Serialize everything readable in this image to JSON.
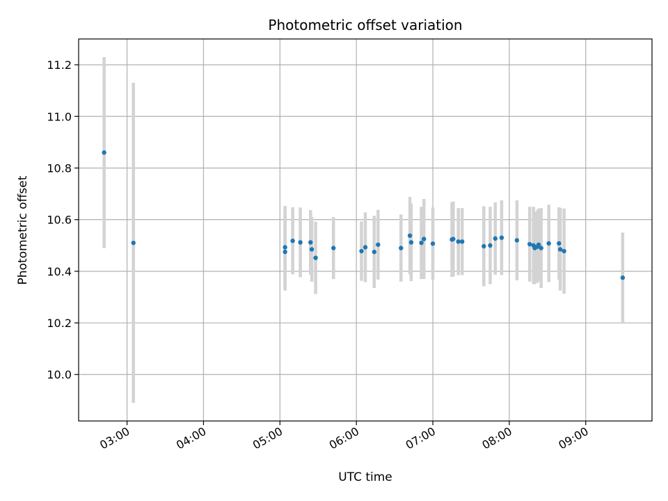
{
  "chart_data": {
    "type": "scatter",
    "title": "Photometric offset variation",
    "xlabel": "UTC time",
    "ylabel": "Photometric offset",
    "xlim": [
      "02:22",
      "09:52"
    ],
    "ylim": [
      9.82,
      11.3
    ],
    "x_ticks": [
      "03:00",
      "04:00",
      "05:00",
      "06:00",
      "07:00",
      "08:00",
      "09:00"
    ],
    "y_ticks": [
      "10.0",
      "10.2",
      "10.4",
      "10.6",
      "10.8",
      "11.0",
      "11.2"
    ],
    "grid": true,
    "marker_color": "#1f77b4",
    "errorbar_color": "#d3d3d3",
    "points": [
      {
        "x": "02:42",
        "y": 10.86,
        "err": 0.37
      },
      {
        "x": "03:05",
        "y": 10.51,
        "err": 0.62
      },
      {
        "x": "05:04",
        "y": 10.493,
        "err": 0.16
      },
      {
        "x": "05:04",
        "y": 10.475,
        "err": 0.15
      },
      {
        "x": "05:10",
        "y": 10.518,
        "err": 0.13
      },
      {
        "x": "05:16",
        "y": 10.512,
        "err": 0.135
      },
      {
        "x": "05:24",
        "y": 10.512,
        "err": 0.125
      },
      {
        "x": "05:25",
        "y": 10.485,
        "err": 0.125
      },
      {
        "x": "05:28",
        "y": 10.452,
        "err": 0.14
      },
      {
        "x": "05:42",
        "y": 10.49,
        "err": 0.12
      },
      {
        "x": "06:04",
        "y": 10.478,
        "err": 0.115
      },
      {
        "x": "06:07",
        "y": 10.493,
        "err": 0.135
      },
      {
        "x": "06:14",
        "y": 10.475,
        "err": 0.14
      },
      {
        "x": "06:17",
        "y": 10.503,
        "err": 0.135
      },
      {
        "x": "06:35",
        "y": 10.49,
        "err": 0.13
      },
      {
        "x": "06:42",
        "y": 10.538,
        "err": 0.15
      },
      {
        "x": "06:43",
        "y": 10.512,
        "err": 0.15
      },
      {
        "x": "06:51",
        "y": 10.51,
        "err": 0.14
      },
      {
        "x": "06:53",
        "y": 10.525,
        "err": 0.155
      },
      {
        "x": "07:00",
        "y": 10.507,
        "err": 0.14
      },
      {
        "x": "07:15",
        "y": 10.523,
        "err": 0.145
      },
      {
        "x": "07:16",
        "y": 10.525,
        "err": 0.145
      },
      {
        "x": "07:20",
        "y": 10.515,
        "err": 0.13
      },
      {
        "x": "07:23",
        "y": 10.515,
        "err": 0.13
      },
      {
        "x": "07:40",
        "y": 10.497,
        "err": 0.155
      },
      {
        "x": "07:45",
        "y": 10.5,
        "err": 0.15
      },
      {
        "x": "07:49",
        "y": 10.527,
        "err": 0.14
      },
      {
        "x": "07:54",
        "y": 10.53,
        "err": 0.145
      },
      {
        "x": "08:06",
        "y": 10.52,
        "err": 0.155
      },
      {
        "x": "08:16",
        "y": 10.505,
        "err": 0.145
      },
      {
        "x": "08:19",
        "y": 10.5,
        "err": 0.15
      },
      {
        "x": "08:20",
        "y": 10.49,
        "err": 0.14
      },
      {
        "x": "08:22",
        "y": 10.495,
        "err": 0.14
      },
      {
        "x": "08:23",
        "y": 10.503,
        "err": 0.14
      },
      {
        "x": "08:25",
        "y": 10.49,
        "err": 0.155
      },
      {
        "x": "08:31",
        "y": 10.508,
        "err": 0.15
      },
      {
        "x": "08:39",
        "y": 10.508,
        "err": 0.14
      },
      {
        "x": "08:40",
        "y": 10.485,
        "err": 0.16
      },
      {
        "x": "08:43",
        "y": 10.478,
        "err": 0.165
      },
      {
        "x": "09:29",
        "y": 10.375,
        "err": 0.175
      }
    ]
  }
}
